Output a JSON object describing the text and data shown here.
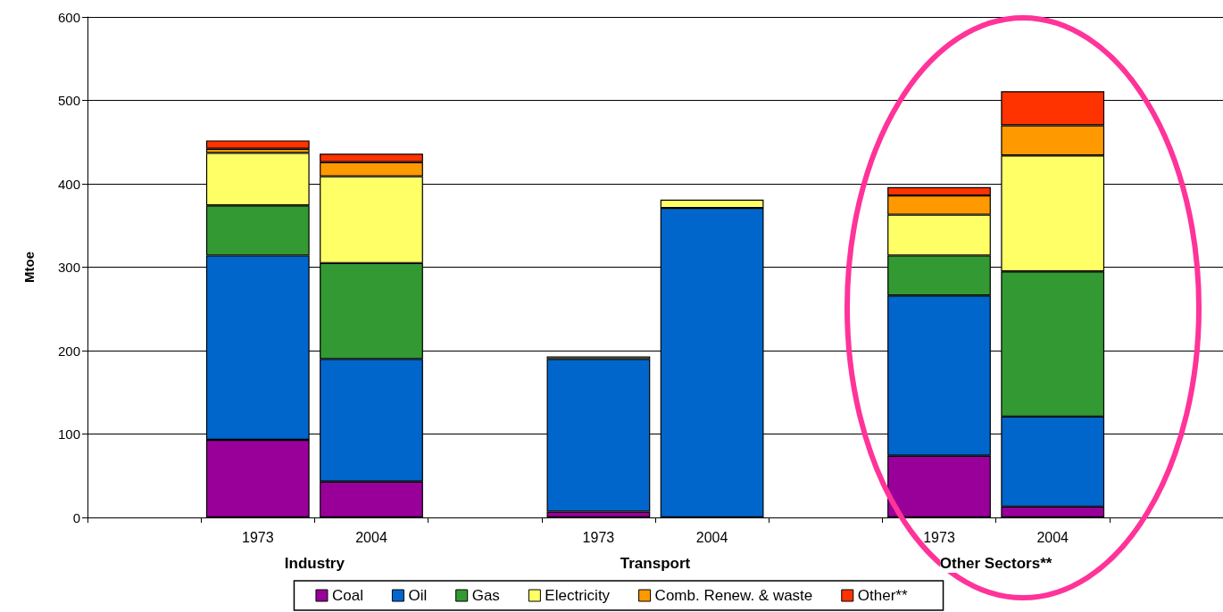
{
  "chart_data": {
    "type": "bar",
    "stacked": true,
    "ylabel": "Mtoe",
    "categories": [
      null,
      "1973",
      "2004",
      null,
      "1973",
      "2004",
      null,
      "1973",
      "2004",
      null
    ],
    "series": [
      {
        "name": "Coal",
        "color": "#990099",
        "values": [
          null,
          93,
          43,
          null,
          7,
          null,
          null,
          74,
          13,
          null
        ]
      },
      {
        "name": "Oil",
        "color": "#0066cc",
        "values": [
          null,
          221,
          147,
          null,
          183,
          371,
          null,
          192,
          108,
          null
        ]
      },
      {
        "name": "Gas",
        "color": "#339933",
        "values": [
          null,
          60,
          115,
          null,
          null,
          null,
          null,
          48,
          174,
          null
        ]
      },
      {
        "name": "Electricity",
        "color": "#ffff66",
        "values": [
          null,
          63,
          104,
          null,
          3,
          10,
          null,
          49,
          139,
          null
        ]
      },
      {
        "name": "Comb. Renew. & waste",
        "color": "#ff9900",
        "values": [
          null,
          5,
          17,
          null,
          null,
          null,
          null,
          23,
          36,
          null
        ]
      },
      {
        "name": "Other**",
        "color": "#ff3300",
        "values": [
          null,
          10,
          10,
          null,
          null,
          null,
          null,
          10,
          41,
          null
        ]
      }
    ],
    "annotations": [
      "Industry",
      "Transport",
      "Other Sectors**"
    ],
    "ylim": [
      0,
      600
    ],
    "yticks": [
      0,
      100,
      200,
      300,
      400,
      500,
      600
    ],
    "grid": "y",
    "legend": "bottom"
  }
}
